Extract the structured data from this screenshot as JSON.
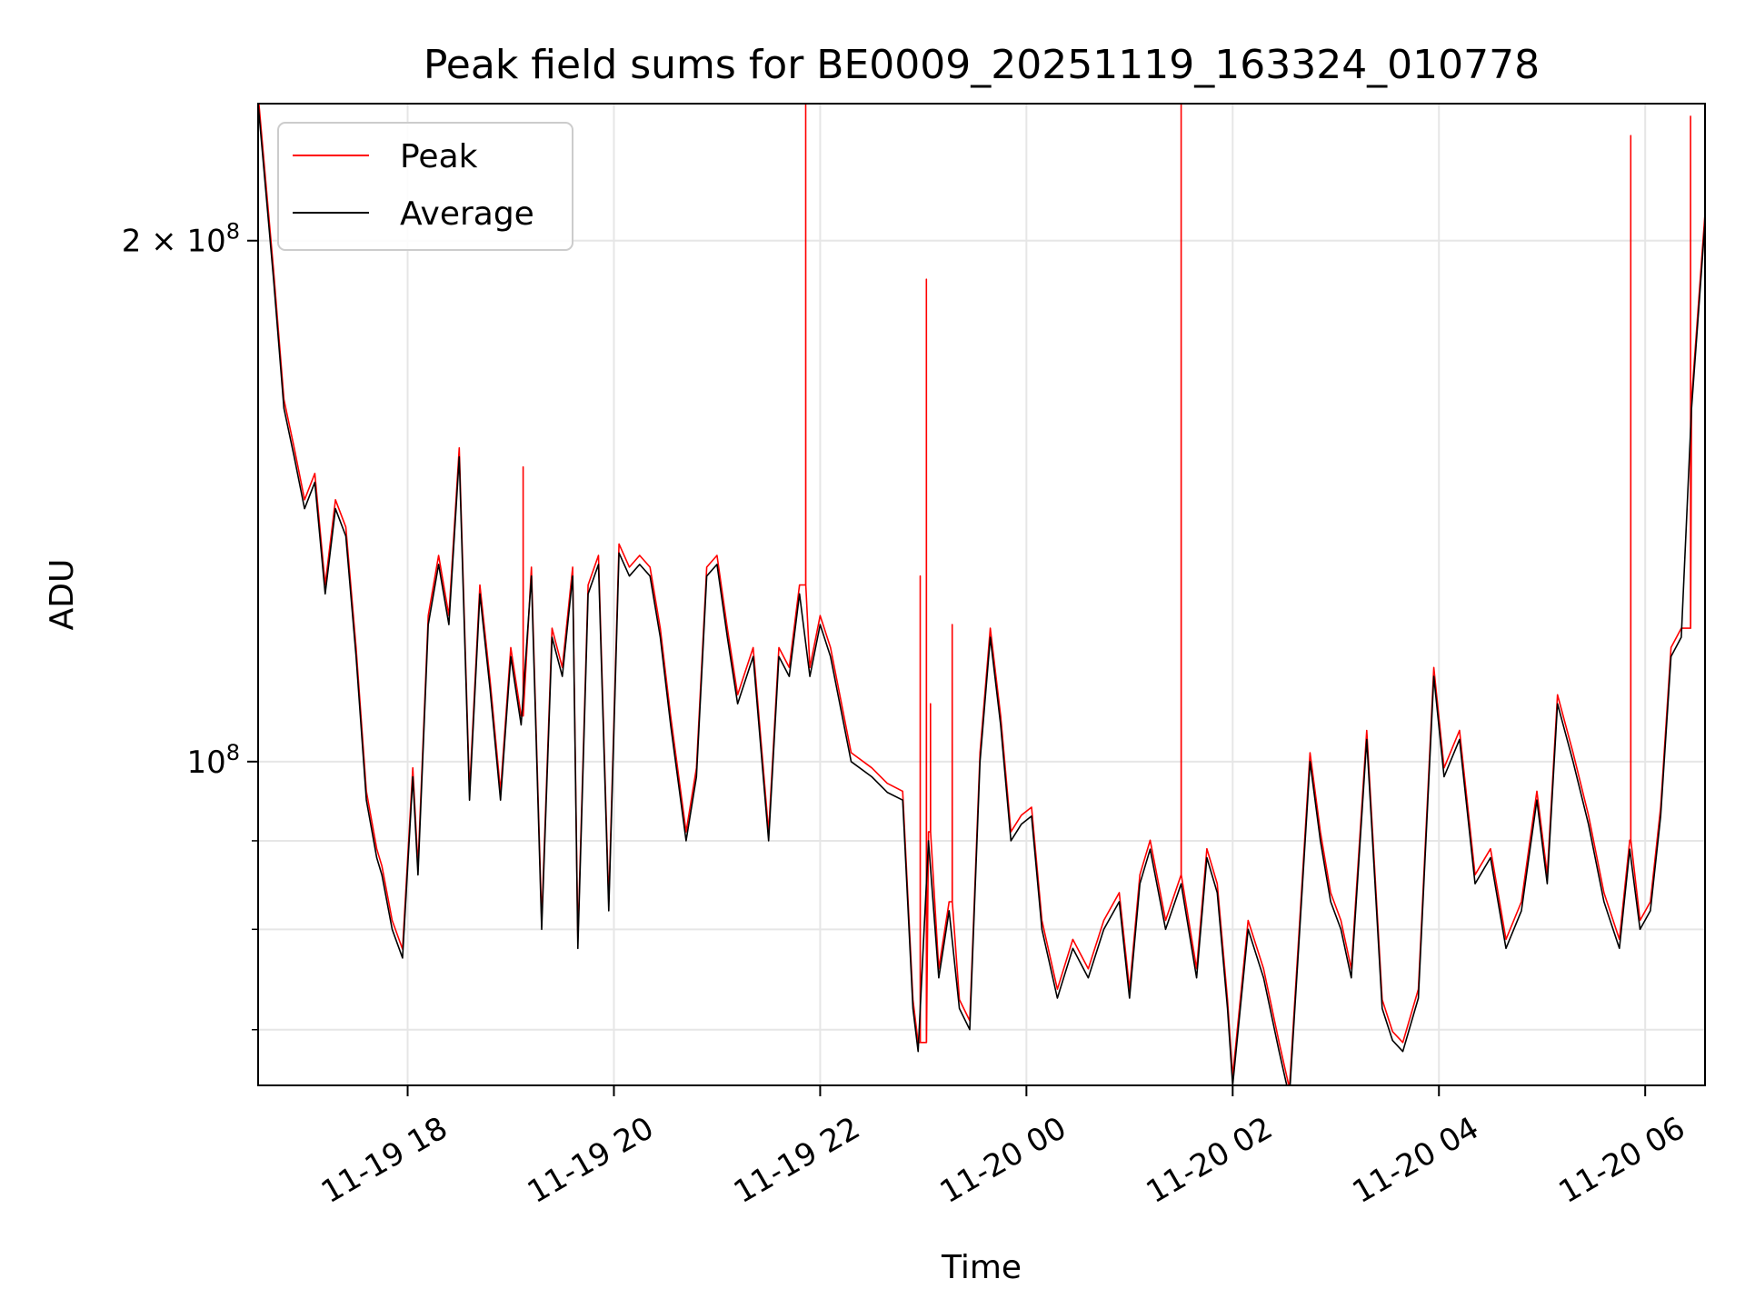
{
  "chart_data": {
    "type": "line",
    "title": "Peak field sums for BE0009_20251119_163324_010778",
    "xlabel": "Time",
    "ylabel": "ADU",
    "yscale": "log",
    "grid": true,
    "legend_position": "top-left",
    "xlim": [
      "11-19 16:33",
      "11-20 06:35"
    ],
    "ylim": [
      65000000,
      240000000
    ],
    "x_ticks": [
      "11-19 18",
      "11-19 20",
      "11-19 22",
      "11-20 00",
      "11-20 02",
      "11-20 04",
      "11-20 06"
    ],
    "x_tick_hours": [
      18,
      20,
      22,
      24,
      26,
      28,
      30
    ],
    "y_ticks": [
      {
        "value": 200000000,
        "label": "2 × 10^8",
        "base": "2 × 10",
        "exp": "8"
      },
      {
        "value": 100000000,
        "label": "10^8",
        "base": "10",
        "exp": "8"
      }
    ],
    "y_minor_ticks": [
      60000000,
      70000000,
      80000000,
      90000000
    ],
    "series": [
      {
        "name": "Average",
        "color": "#000000",
        "x_hours": [
          16.55,
          16.7,
          16.8,
          16.9,
          17.0,
          17.1,
          17.2,
          17.3,
          17.4,
          17.5,
          17.6,
          17.7,
          17.75,
          17.85,
          17.95,
          18.05,
          18.1,
          18.2,
          18.3,
          18.4,
          18.5,
          18.6,
          18.7,
          18.8,
          18.9,
          19.0,
          19.1,
          19.2,
          19.3,
          19.4,
          19.5,
          19.6,
          19.65,
          19.75,
          19.85,
          19.95,
          20.05,
          20.15,
          20.25,
          20.35,
          20.45,
          20.55,
          20.7,
          20.8,
          20.9,
          21.0,
          21.1,
          21.2,
          21.35,
          21.5,
          21.6,
          21.7,
          21.8,
          21.9,
          22.0,
          22.1,
          22.3,
          22.5,
          22.65,
          22.8,
          22.9,
          22.95,
          23.05,
          23.15,
          23.25,
          23.35,
          23.45,
          23.55,
          23.65,
          23.75,
          23.85,
          23.95,
          24.05,
          24.15,
          24.3,
          24.45,
          24.6,
          24.75,
          24.9,
          25.0,
          25.1,
          25.2,
          25.35,
          25.5,
          25.65,
          25.75,
          25.85,
          25.95,
          26.0,
          26.15,
          26.3,
          26.45,
          26.55,
          26.65,
          26.75,
          26.85,
          26.95,
          27.05,
          27.15,
          27.3,
          27.45,
          27.55,
          27.65,
          27.8,
          27.95,
          28.05,
          28.2,
          28.35,
          28.5,
          28.65,
          28.8,
          28.95,
          29.05,
          29.15,
          29.3,
          29.45,
          29.6,
          29.75,
          29.85,
          29.95,
          30.05,
          30.15,
          30.25,
          30.35,
          30.45,
          30.58
        ],
        "values": [
          240000000,
          190000000,
          160000000,
          150000000,
          140000000,
          145000000,
          125000000,
          140000000,
          135000000,
          115000000,
          95000000,
          88000000,
          86000000,
          80000000,
          77000000,
          98000000,
          86000000,
          120000000,
          130000000,
          120000000,
          150000000,
          95000000,
          125000000,
          110000000,
          95000000,
          115000000,
          105000000,
          128000000,
          80000000,
          118000000,
          112000000,
          128000000,
          78000000,
          125000000,
          130000000,
          82000000,
          132000000,
          128000000,
          130000000,
          128000000,
          118000000,
          105000000,
          90000000,
          98000000,
          128000000,
          130000000,
          118000000,
          108000000,
          115000000,
          90000000,
          115000000,
          112000000,
          125000000,
          112000000,
          120000000,
          115000000,
          100000000,
          98000000,
          96000000,
          95000000,
          72000000,
          68000000,
          90000000,
          75000000,
          82000000,
          72000000,
          70000000,
          100000000,
          118000000,
          105000000,
          90000000,
          92000000,
          93000000,
          80000000,
          73000000,
          78000000,
          75000000,
          80000000,
          83000000,
          73000000,
          85000000,
          89000000,
          80000000,
          85000000,
          75000000,
          88000000,
          84000000,
          72000000,
          65000000,
          80000000,
          75000000,
          68000000,
          64000000,
          80000000,
          100000000,
          90000000,
          83000000,
          80000000,
          75000000,
          103000000,
          72000000,
          69000000,
          68000000,
          73000000,
          112000000,
          98000000,
          103000000,
          85000000,
          88000000,
          78000000,
          82000000,
          95000000,
          85000000,
          108000000,
          100000000,
          92000000,
          83000000,
          78000000,
          89000000,
          80000000,
          82000000,
          93000000,
          115000000,
          118000000,
          160000000,
          205000000
        ]
      },
      {
        "name": "Peak",
        "color": "#ff0000",
        "spikes": [
          {
            "x_hour": 19.12,
            "value": 148000000
          },
          {
            "x_hour": 21.86,
            "value": 240000000
          },
          {
            "x_hour": 22.97,
            "value": 128000000
          },
          {
            "x_hour": 23.03,
            "value": 190000000
          },
          {
            "x_hour": 23.07,
            "value": 108000000
          },
          {
            "x_hour": 23.28,
            "value": 120000000
          },
          {
            "x_hour": 25.5,
            "value": 240000000
          },
          {
            "x_hour": 29.86,
            "value": 230000000
          },
          {
            "x_hour": 30.44,
            "value": 236000000
          }
        ]
      }
    ]
  }
}
